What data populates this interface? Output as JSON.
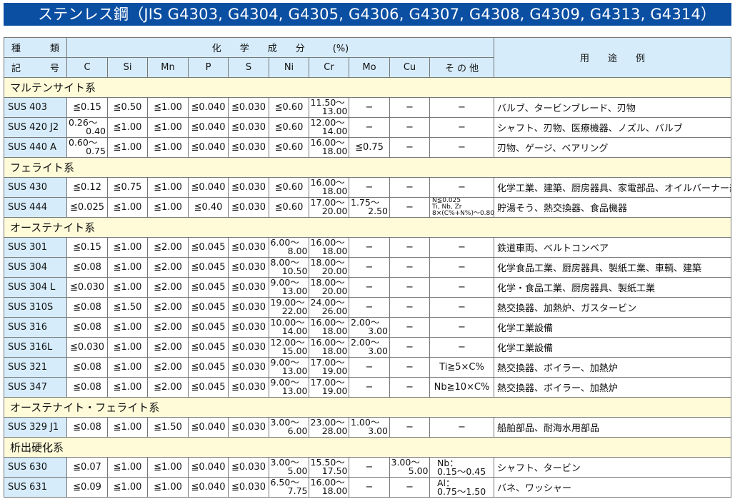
{
  "title": "ステンレス鋼（JIS G4303, G4304, G4305, G4306, G4307, G4308, G4309, G4313, G4314）",
  "header": {
    "kind_top": [
      "種",
      "類"
    ],
    "kind_bottom": [
      "記",
      "号"
    ],
    "chem": "化　　学　　成　　分　　　(%)",
    "use": "用　　途　　例",
    "cols": [
      "C",
      "Si",
      "Mn",
      "P",
      "S",
      "Ni",
      "Cr",
      "Mo",
      "Cu",
      "そ の 他"
    ]
  },
  "groups": [
    {
      "name": "マルテンサイト系",
      "rows": [
        {
          "code": "SUS 403",
          "vals": [
            "≦0.15",
            "≦0.50",
            "≦1.00",
            "≦0.040",
            "≦0.030",
            "≦0.60",
            [
              "11.50〜",
              "13.00"
            ],
            "−",
            "−",
            "−"
          ],
          "use": "バルブ、タービンブレード、刃物"
        },
        {
          "code": "SUS 420 J2",
          "vals": [
            [
              "0.26〜",
              "0.40"
            ],
            "≦1.00",
            "≦1.00",
            "≦0.040",
            "≦0.030",
            "≦0.60",
            [
              "12.00〜",
              "14.00"
            ],
            "−",
            "−",
            "−"
          ],
          "use": "シャフト、刃物、医療機器、ノズル、バルブ"
        },
        {
          "code": "SUS 440 A",
          "vals": [
            [
              "0.60〜",
              "0.75"
            ],
            "≦1.00",
            "≦1.00",
            "≦0.040",
            "≦0.030",
            "≦0.60",
            [
              "16.00〜",
              "18.00"
            ],
            "≦0.75",
            "−",
            "−"
          ],
          "use": "刃物、ゲージ、ベアリング"
        }
      ]
    },
    {
      "name": "フェライト系",
      "rows": [
        {
          "code": "SUS 430",
          "vals": [
            "≦0.12",
            "≦0.75",
            "≦1.00",
            "≦0.040",
            "≦0.030",
            "≦0.60",
            [
              "16.00〜",
              "18.00"
            ],
            "−",
            "−",
            "−"
          ],
          "use": "化学工業、建築、厨房器具、家電部品、オイルバーナー部品"
        },
        {
          "code": "SUS 444",
          "vals": [
            "≦0.025",
            "≦1.00",
            "≦1.00",
            "≦0.40",
            "≦0.030",
            "≦0.60",
            [
              "17.00〜",
              "20.00"
            ],
            [
              "1.75〜",
              "2.50"
            ],
            "−",
            {
              "small": [
                "N≦0.025",
                "Ti, Nb, Zr",
                "8×(C%+N%)〜0.80"
              ]
            }
          ],
          "use": "貯湯そう、熱交換器、食品機器"
        }
      ]
    },
    {
      "name": "オーステナイト系",
      "rows": [
        {
          "code": "SUS 301",
          "vals": [
            "≦0.15",
            "≦1.00",
            "≦2.00",
            "≦0.045",
            "≦0.030",
            [
              "6.00〜",
              "8.00"
            ],
            [
              "16.00〜",
              "18.00"
            ],
            "−",
            "−",
            "−"
          ],
          "use": "鉄道車両、ベルトコンベア"
        },
        {
          "code": "SUS 304",
          "vals": [
            "≦0.08",
            "≦1.00",
            "≦2.00",
            "≦0.045",
            "≦0.030",
            [
              "8.00〜",
              "10.50"
            ],
            [
              "18.00〜",
              "20.00"
            ],
            "−",
            "−",
            "−"
          ],
          "use": "化学食品工業、厨房器具、製紙工業、車輌、建築"
        },
        {
          "code": "SUS 304 L",
          "vals": [
            "≦0.030",
            "≦1.00",
            "≦2.00",
            "≦0.045",
            "≦0.030",
            [
              "9.00〜",
              "13.00"
            ],
            [
              "18.00〜",
              "20.00"
            ],
            "−",
            "−",
            "−"
          ],
          "use": "化学・食品工業、厨房器具、製紙工業"
        },
        {
          "code": "SUS 310S",
          "vals": [
            "≦0.08",
            "≦1.50",
            "≦2.00",
            "≦0.045",
            "≦0.030",
            [
              "19.00〜",
              "22.00"
            ],
            [
              "24.00〜",
              "26.00"
            ],
            "−",
            "−",
            "−"
          ],
          "use": "熱交換器、加熱炉、ガスタービン"
        },
        {
          "code": "SUS 316",
          "vals": [
            "≦0.08",
            "≦1.00",
            "≦2.00",
            "≦0.045",
            "≦0.030",
            [
              "10.00〜",
              "14.00"
            ],
            [
              "16.00〜",
              "18.00"
            ],
            [
              "2.00〜",
              "3.00"
            ],
            "−",
            "−"
          ],
          "use": "化学工業設備"
        },
        {
          "code": "SUS 316L",
          "vals": [
            "≦0.030",
            "≦1.00",
            "≦2.00",
            "≦0.045",
            "≦0.030",
            [
              "12.00〜",
              "15.00"
            ],
            [
              "16.00〜",
              "18.00"
            ],
            [
              "2.00〜",
              "3.00"
            ],
            "−",
            "−"
          ],
          "use": "化学工業設備"
        },
        {
          "code": "SUS 321",
          "vals": [
            "≦0.08",
            "≦1.00",
            "≦2.00",
            "≦0.045",
            "≦0.030",
            [
              "9.00〜",
              "13.00"
            ],
            [
              "17.00〜",
              "19.00"
            ],
            "−",
            "−",
            "Ti≧5×C%"
          ],
          "use": "熱交換器、ボイラー、加熱炉"
        },
        {
          "code": "SUS 347",
          "vals": [
            "≦0.08",
            "≦1.00",
            "≦2.00",
            "≦0.045",
            "≦0.030",
            [
              "9.00〜",
              "13.00"
            ],
            [
              "17.00〜",
              "19.00"
            ],
            "−",
            "−",
            "Nb≧10×C%"
          ],
          "use": "熱交換器、ボイラー、加熱炉"
        }
      ]
    },
    {
      "name": "オーステナイト・フェライト系",
      "rows": [
        {
          "code": "SUS 329 J1",
          "vals": [
            "≦0.08",
            "≦1.00",
            "≦1.50",
            "≦0.040",
            "≦0.030",
            [
              "3.00〜",
              "6.00"
            ],
            [
              "23.00〜",
              "28.00"
            ],
            [
              "1.00〜",
              "3.00"
            ],
            "−",
            "−"
          ],
          "use": "船舶部品、耐海水用部品"
        }
      ]
    },
    {
      "name": "析出硬化系",
      "rows": [
        {
          "code": "SUS 630",
          "vals": [
            "≦0.07",
            "≦1.00",
            "≦1.00",
            "≦0.040",
            "≦0.030",
            [
              "3.00〜",
              "5.00"
            ],
            [
              "15.50〜",
              "17.50"
            ],
            "−",
            [
              "3.00〜",
              "5.00"
            ],
            {
              "lines": [
                "Nb：",
                "0.15〜0.45"
              ]
            }
          ],
          "use": "シャフト、タービン"
        },
        {
          "code": "SUS 631",
          "vals": [
            "≦0.09",
            "≦1.00",
            "≦1.00",
            "≦0.040",
            "≦0.030",
            [
              "6.50〜",
              "7.75"
            ],
            [
              "16.00〜",
              "18.00"
            ],
            "−",
            "−",
            {
              "lines": [
                "Al：",
                "0.75〜1.50"
              ]
            }
          ],
          "use": "バネ、ワッシャー"
        }
      ]
    }
  ]
}
